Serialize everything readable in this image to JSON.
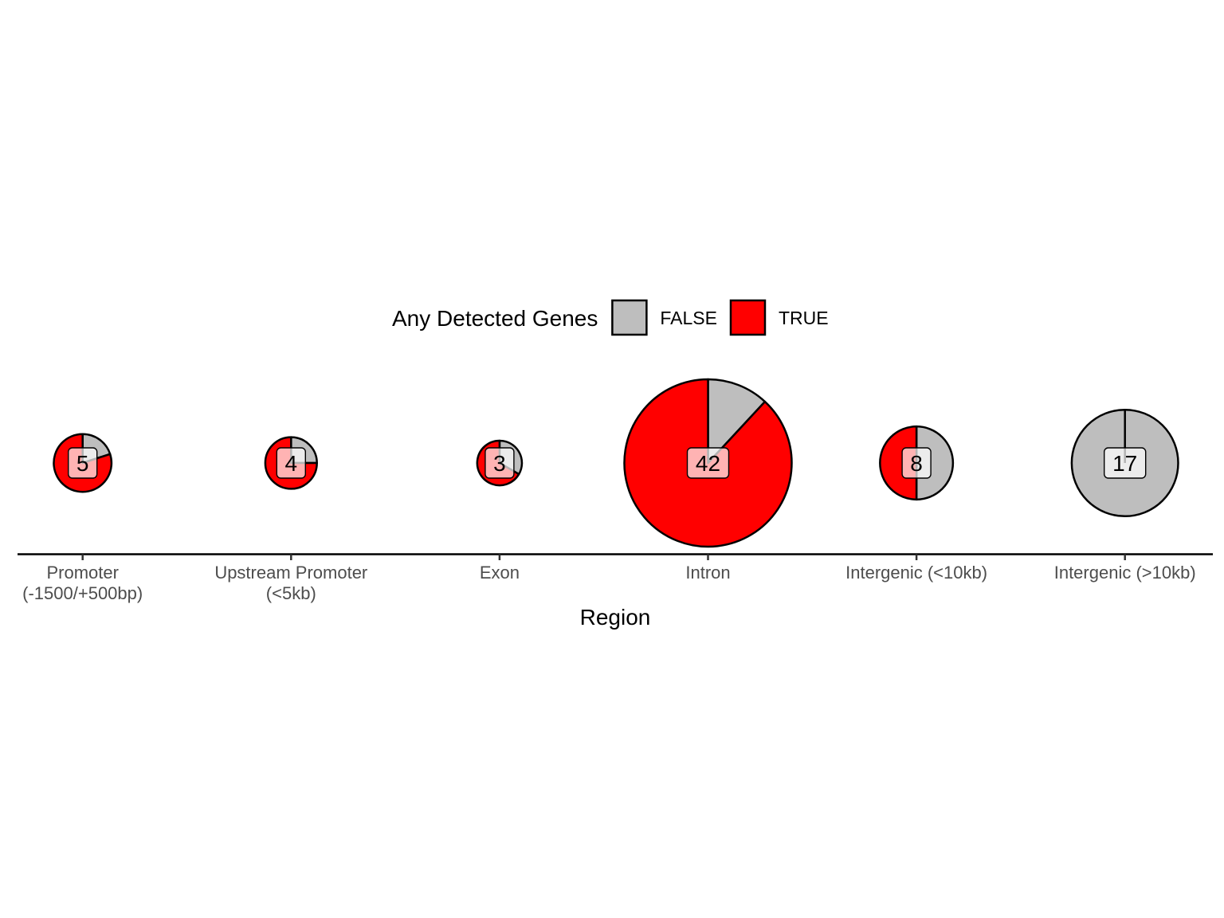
{
  "chart_data": {
    "type": "pie",
    "subtype": "scatter-pie (pie per category, size by count)",
    "legend": {
      "title": "Any Detected Genes",
      "position": "top",
      "entries": [
        {
          "label": "FALSE",
          "color": "#bebebe"
        },
        {
          "label": "TRUE",
          "color": "#ff0000"
        }
      ]
    },
    "xlabel": "Region",
    "ylabel": "",
    "grid": false,
    "categories": [
      [
        "Promoter",
        "(-1500/+500bp)"
      ],
      [
        "Upstream Promoter",
        "(<5kb)"
      ],
      [
        "Exon"
      ],
      [
        "Intron"
      ],
      [
        "Intergenic (<10kb)"
      ],
      [
        "Intergenic (>10kb)"
      ]
    ],
    "series": [
      {
        "name": "FALSE",
        "values": [
          1,
          1,
          1,
          5,
          4,
          17
        ]
      },
      {
        "name": "TRUE",
        "values": [
          4,
          3,
          2,
          37,
          4,
          0
        ]
      }
    ],
    "totals": [
      5,
      4,
      3,
      42,
      8,
      17
    ]
  }
}
